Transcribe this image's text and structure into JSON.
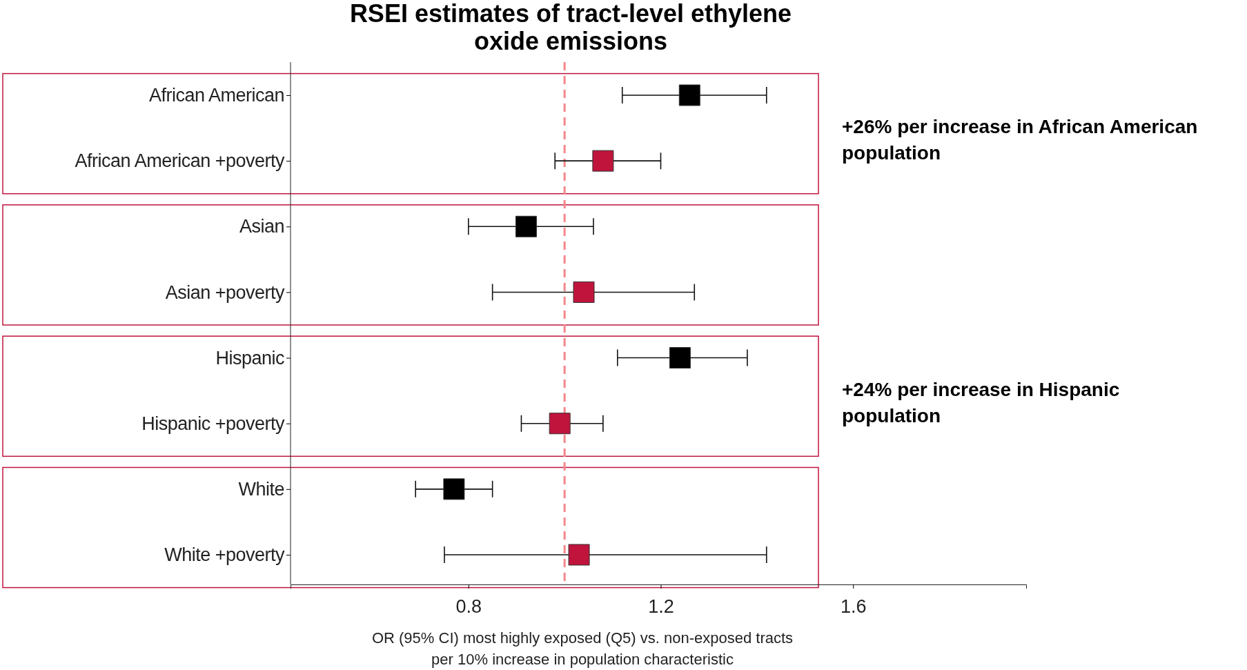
{
  "chart_data": {
    "type": "scatter",
    "orientation": "horizontal",
    "title": "RSEI estimates of tract-level ethylene oxide emissions",
    "xlabel": "OR (95% CI) most highly exposed (Q5) vs. non-exposed tracts\nper 10% increase in population characteristic",
    "categories": [
      "African American",
      "African American +poverty",
      "Asian",
      "Asian +poverty",
      "Hispanic",
      "Hispanic +poverty",
      "White",
      "White +poverty"
    ],
    "values": [
      1.26,
      1.08,
      0.92,
      1.04,
      1.24,
      0.99,
      0.77,
      1.03
    ],
    "errors": [
      [
        1.12,
        1.42
      ],
      [
        0.98,
        1.2
      ],
      [
        0.8,
        1.06
      ],
      [
        0.85,
        1.27
      ],
      [
        1.11,
        1.38
      ],
      [
        0.91,
        1.08
      ],
      [
        0.69,
        0.85
      ],
      [
        0.75,
        1.42
      ]
    ],
    "colors": [
      "#000000",
      "#c0143c",
      "#000000",
      "#c0143c",
      "#000000",
      "#c0143c",
      "#000000",
      "#c0143c"
    ],
    "marker": "square",
    "xlim": [
      0.43,
      1.96
    ],
    "xticks": [
      0.8,
      1.2,
      1.6
    ],
    "ref_lines": [
      {
        "axis": "x",
        "value": 1.0,
        "color": "#f4868a",
        "line_style": "dashed"
      }
    ],
    "annotations": [
      "+26% per increase in African American population",
      "+24% per increase in Hispanic population"
    ]
  }
}
